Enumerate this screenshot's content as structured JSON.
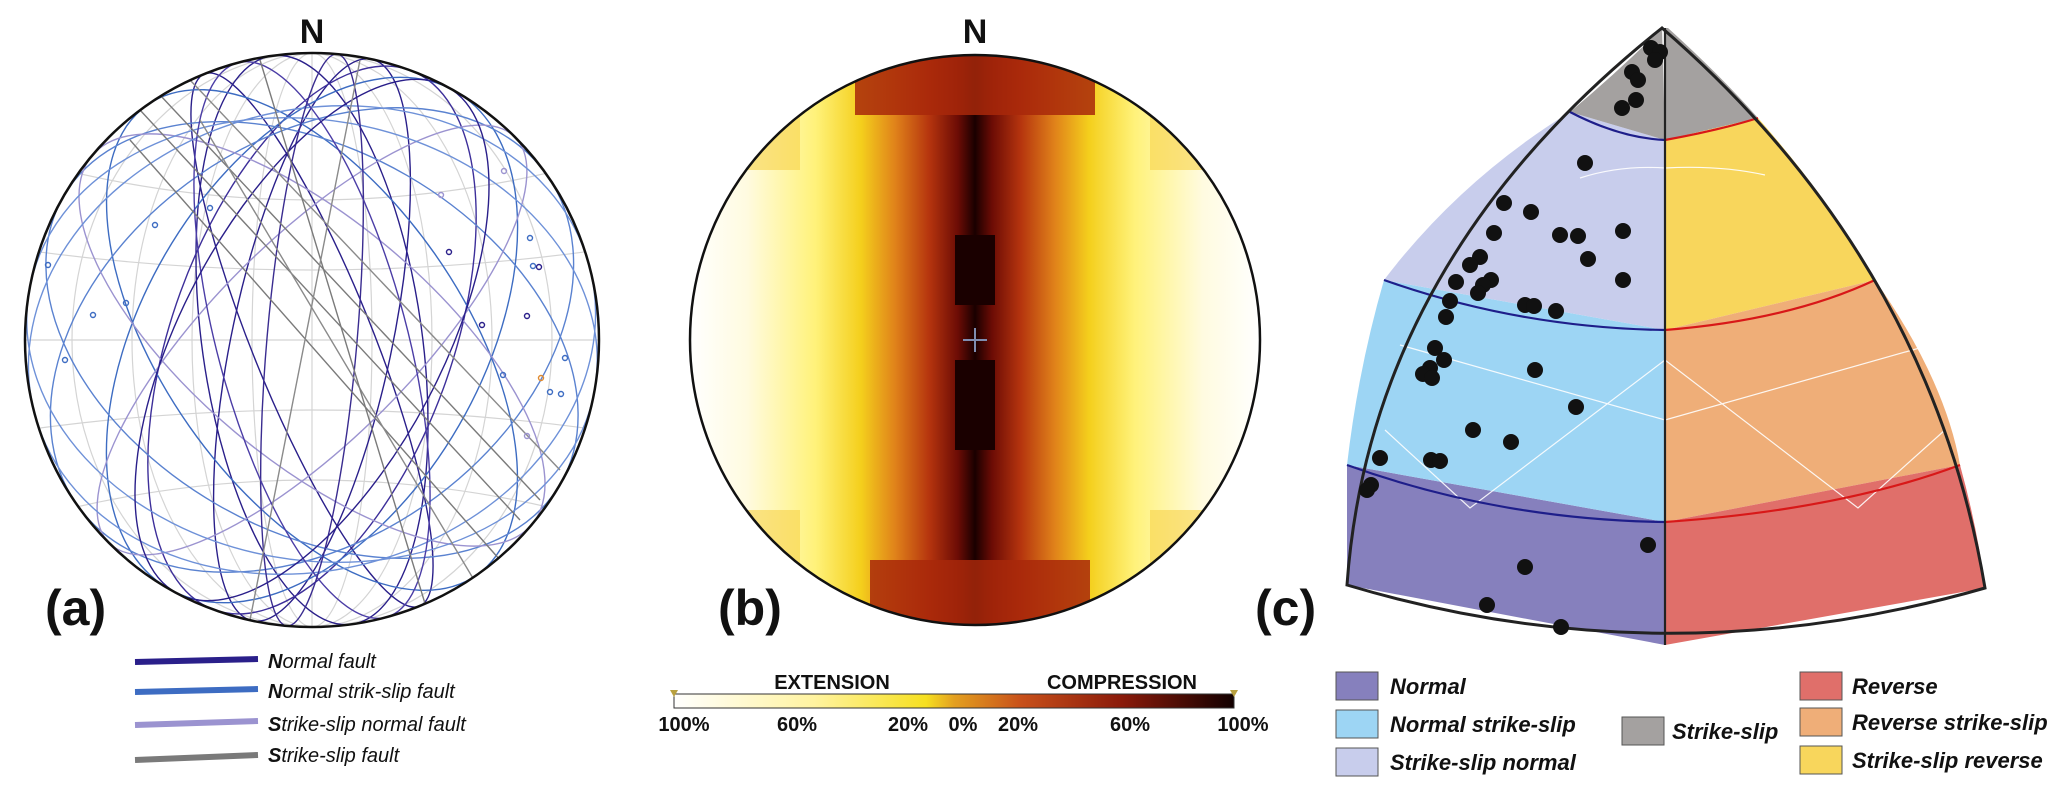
{
  "panel_a": {
    "label": "(a)",
    "north": "N",
    "legend": [
      {
        "initial": "N",
        "rest": "ormal fault",
        "color": "#2a1f8a"
      },
      {
        "initial": "N",
        "rest": "ormal strik-slip fault",
        "color": "#3d6cc2"
      },
      {
        "initial": "S",
        "rest": "trike-slip normal fault",
        "color": "#9b93d0"
      },
      {
        "initial": "S",
        "rest": "trike-slip fault",
        "color": "#7a7a7a"
      }
    ]
  },
  "panel_b": {
    "label": "(b)",
    "north": "N",
    "scale": {
      "left_title": "EXTENSION",
      "right_title": "COMPRESSION",
      "ticks": [
        "100%",
        "60%",
        "20%",
        "0%",
        "20%",
        "60%",
        "100%"
      ]
    }
  },
  "panel_c": {
    "label": "(c)",
    "regions": {
      "normal": "#8680bd",
      "normal_strike_slip": "#9dd5f4",
      "strike_slip_normal": "#c8cdec",
      "strike_slip": "#a4a1a0",
      "reverse": "#e06f6a",
      "reverse_strike_slip": "#efae78",
      "strike_slip_reverse": "#f8d65c"
    },
    "legend": [
      {
        "label": "Normal",
        "color": "#8680bd"
      },
      {
        "label": "Normal strike-slip",
        "color": "#9dd5f4"
      },
      {
        "label": "Strike-slip normal",
        "color": "#c8cdec"
      },
      {
        "label": "Strike-slip",
        "color": "#a4a1a0"
      },
      {
        "label": "Reverse",
        "color": "#e06f6a"
      },
      {
        "label": "Reverse strike-slip",
        "color": "#efae78"
      },
      {
        "label": "Strike-slip reverse",
        "color": "#f8d65c"
      }
    ]
  }
}
